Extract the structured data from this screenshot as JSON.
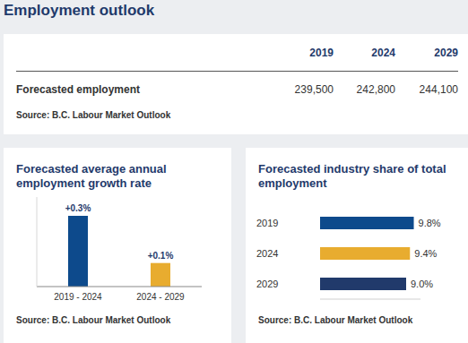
{
  "title": "Employment outlook",
  "table": {
    "columns": [
      "2019",
      "2024",
      "2029"
    ],
    "rows": [
      {
        "label": "Forecasted employment",
        "values": [
          "239,500",
          "242,800",
          "244,100"
        ]
      }
    ],
    "source": "Source: B.C. Labour Market Outlook"
  },
  "chart_data": [
    {
      "type": "bar",
      "title": "Forecasted average annual employment growth rate",
      "categories": [
        "2019 - 2024",
        "2024 - 2029"
      ],
      "values": [
        0.3,
        0.1
      ],
      "value_labels": [
        "+0.3%",
        "+0.1%"
      ],
      "colors": [
        "#0d4a8c",
        "#e8ac2f"
      ],
      "ylim": [
        0,
        0.38
      ],
      "data_labels": true,
      "tick_labels": "x",
      "source": "Source: B.C. Labour Market Outlook"
    },
    {
      "type": "bar",
      "orientation": "horizontal",
      "title": "Forecasted industry share of total employment",
      "categories": [
        "2019",
        "2024",
        "2029"
      ],
      "values": [
        9.8,
        9.4,
        9.0
      ],
      "value_labels": [
        "9.8%",
        "9.4%",
        "9.0%"
      ],
      "colors": [
        "#0d4a8c",
        "#e8ac2f",
        "#213a6b"
      ],
      "xlim": [
        0,
        10.5
      ],
      "data_labels": true,
      "tick_labels": "y",
      "source": "Source: B.C. Labour Market Outlook"
    }
  ]
}
